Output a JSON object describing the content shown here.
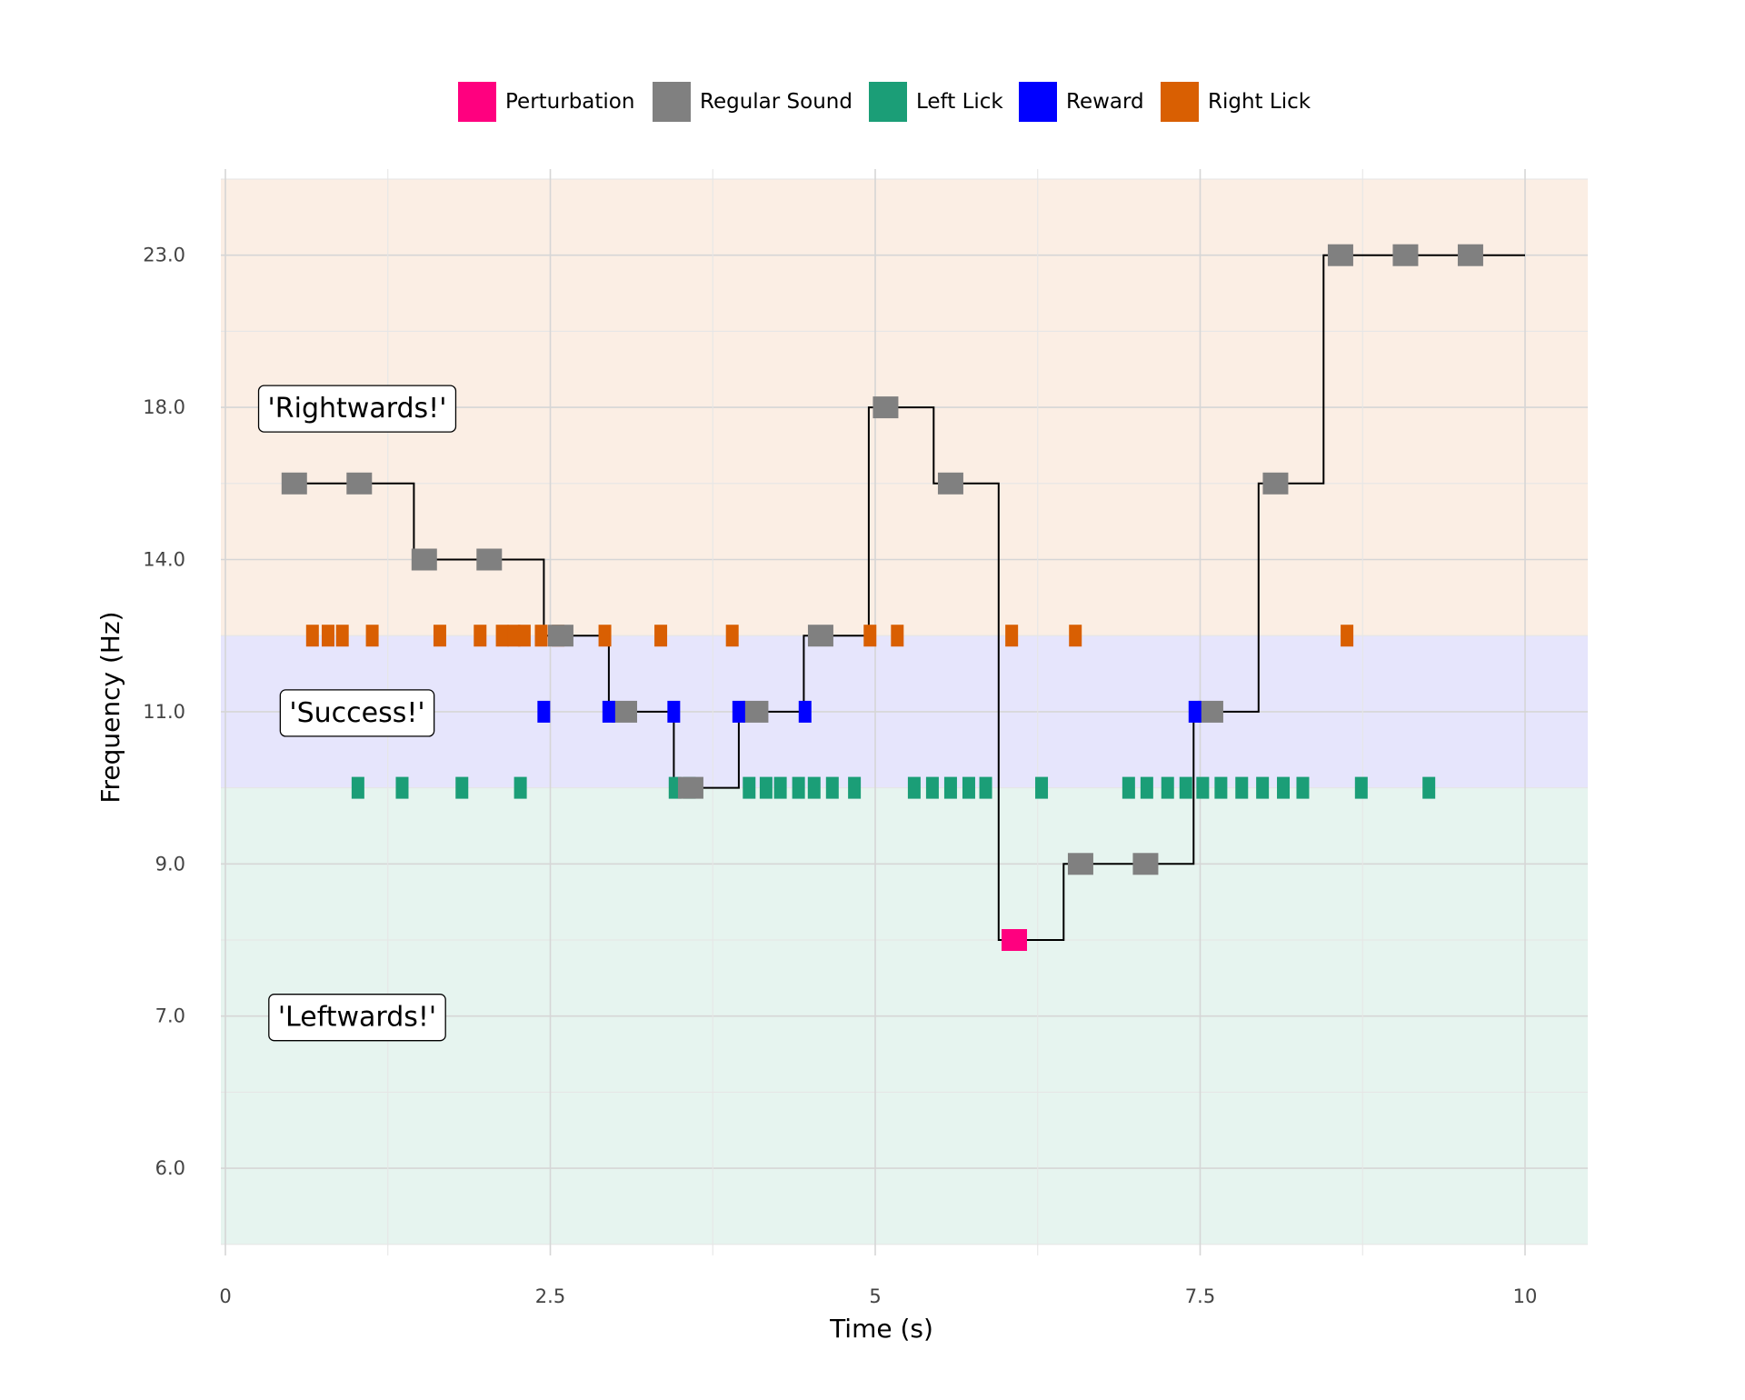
{
  "chart_data": {
    "type": "scatter",
    "xlabel": "Time (s)",
    "ylabel": "Frequency (Hz)",
    "xlim": [
      -0.1,
      10.5
    ],
    "x_ticks": [
      0,
      2.5,
      5,
      7.5,
      10
    ],
    "x_tick_labels": [
      "0",
      "2.5",
      "5",
      "7.5",
      "10"
    ],
    "y_ticks": [
      6.0,
      7.0,
      9.0,
      11.0,
      14.0,
      18.0,
      23.0
    ],
    "y_tick_labels": [
      "6.0",
      "7.0",
      "9.0",
      "11.0",
      "14.0",
      "18.0",
      "23.0"
    ],
    "y_scale": "categorical levels",
    "y_levels": [
      5.0,
      6.0,
      6.5,
      7.0,
      8.0,
      9.0,
      10.0,
      11.0,
      12.0,
      14.0,
      16.0,
      18.0,
      20.0,
      23.0,
      25.0
    ],
    "grid": true,
    "legend_position": "top-center",
    "legend": [
      {
        "name": "Perturbation",
        "color": "#ff007f"
      },
      {
        "name": "Regular Sound",
        "color": "#808080"
      },
      {
        "name": "Left Lick",
        "color": "#1b9e77"
      },
      {
        "name": "Reward",
        "color": "#0000ff"
      },
      {
        "name": "Right Lick",
        "color": "#d95f02"
      }
    ],
    "regions": [
      {
        "label": "'Rightwards!'",
        "from": 12.0,
        "to": 25.0,
        "color": "#fbeee4",
        "label_x": 0.2,
        "label_y": 18.0
      },
      {
        "label": "'Success!'",
        "from": 10.0,
        "to": 12.0,
        "color": "#e6e5fc",
        "label_x": 0.2,
        "label_y": 11.0
      },
      {
        "label": "'Leftwards!'",
        "from": 5.0,
        "to": 10.0,
        "color": "#e6f4ef",
        "label_x": 0.2,
        "label_y": 7.0
      }
    ],
    "step_line": {
      "color": "#000000",
      "points": [
        [
          0.5,
          16.0
        ],
        [
          1.45,
          16.0
        ],
        [
          1.45,
          14.0
        ],
        [
          2.45,
          14.0
        ],
        [
          2.45,
          12.0
        ],
        [
          2.95,
          12.0
        ],
        [
          2.95,
          11.0
        ],
        [
          3.45,
          11.0
        ],
        [
          3.45,
          10.0
        ],
        [
          3.95,
          10.0
        ],
        [
          3.95,
          11.0
        ],
        [
          4.45,
          11.0
        ],
        [
          4.45,
          12.0
        ],
        [
          4.95,
          12.0
        ],
        [
          4.95,
          18.0
        ],
        [
          5.45,
          18.0
        ],
        [
          5.45,
          16.0
        ],
        [
          5.95,
          16.0
        ],
        [
          5.95,
          8.0
        ],
        [
          6.45,
          8.0
        ],
        [
          6.45,
          9.0
        ],
        [
          7.45,
          9.0
        ],
        [
          7.45,
          11.0
        ],
        [
          7.95,
          11.0
        ],
        [
          7.95,
          16.0
        ],
        [
          8.45,
          16.0
        ],
        [
          8.45,
          23.0
        ],
        [
          10.0,
          23.0
        ]
      ]
    },
    "series": [
      {
        "name": "Regular Sound",
        "color": "#808080",
        "y_level": null,
        "points": [
          [
            0.53,
            16.0
          ],
          [
            1.03,
            16.0
          ],
          [
            1.53,
            14.0
          ],
          [
            2.03,
            14.0
          ],
          [
            2.58,
            12.0
          ],
          [
            3.07,
            11.0
          ],
          [
            3.58,
            10.0
          ],
          [
            4.08,
            11.0
          ],
          [
            4.58,
            12.0
          ],
          [
            5.08,
            18.0
          ],
          [
            5.58,
            16.0
          ],
          [
            6.58,
            9.0
          ],
          [
            7.08,
            9.0
          ],
          [
            7.58,
            11.0
          ],
          [
            8.08,
            16.0
          ],
          [
            8.58,
            23.0
          ],
          [
            9.08,
            23.0
          ],
          [
            9.58,
            23.0
          ]
        ]
      },
      {
        "name": "Perturbation",
        "color": "#ff007f",
        "y_level": null,
        "points": [
          [
            6.07,
            8.0
          ]
        ]
      },
      {
        "name": "Right Lick",
        "color": "#d95f02",
        "y_level": 12.0,
        "x": [
          0.67,
          0.79,
          0.9,
          1.13,
          1.65,
          1.96,
          2.13,
          2.22,
          2.3,
          2.43,
          2.56,
          2.92,
          3.35,
          3.9,
          4.96,
          5.17,
          6.05,
          6.54,
          8.63
        ]
      },
      {
        "name": "Reward",
        "color": "#0000ff",
        "y_level": 11.0,
        "x": [
          2.45,
          2.95,
          3.45,
          3.95,
          4.46,
          7.46
        ]
      },
      {
        "name": "Left Lick",
        "color": "#1b9e77",
        "y_level": 10.0,
        "x": [
          1.02,
          1.36,
          1.82,
          2.27,
          3.46,
          3.57,
          4.03,
          4.16,
          4.27,
          4.41,
          4.53,
          4.67,
          4.84,
          5.3,
          5.44,
          5.58,
          5.72,
          5.85,
          6.28,
          6.95,
          7.09,
          7.25,
          7.39,
          7.52,
          7.66,
          7.82,
          7.98,
          8.14,
          8.29,
          8.74,
          9.26
        ]
      }
    ]
  }
}
